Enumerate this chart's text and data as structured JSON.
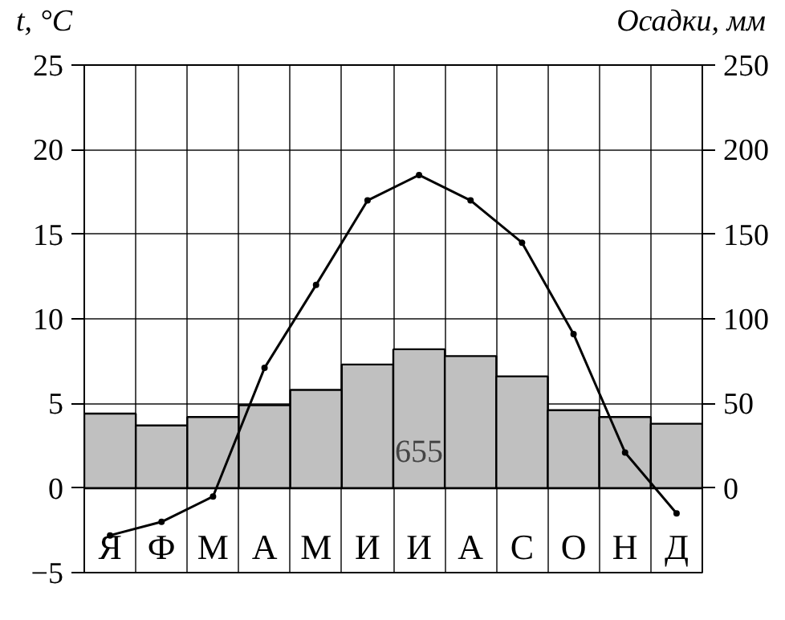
{
  "chart_data": {
    "type": "bar",
    "xlabel": null,
    "ylabel": "t, °C",
    "y2label": "Осадки, мм",
    "categories": [
      "Я",
      "Ф",
      "М",
      "А",
      "М",
      "И",
      "И",
      "А",
      "С",
      "О",
      "Н",
      "Д"
    ],
    "series": [
      {
        "axis": "y2",
        "color": "#c0c0c0",
        "values": [
          44,
          37,
          42,
          49,
          58,
          73,
          82,
          78,
          66,
          46,
          42,
          38
        ]
      },
      {
        "type": "line",
        "axis": "y",
        "color": "#000000",
        "marker": "circle",
        "values": [
          -2.8,
          -2.0,
          -0.5,
          7.1,
          12.0,
          17.0,
          18.5,
          17.0,
          14.5,
          9.1,
          2.1,
          -1.5
        ]
      }
    ],
    "annotations": [
      "655"
    ],
    "ylim": [
      -5,
      25
    ],
    "yticks": [
      -5,
      0,
      5,
      10,
      15,
      20,
      25
    ],
    "y2lim": [
      -50,
      250
    ],
    "y2ticks": [
      0,
      50,
      100,
      150,
      200,
      250
    ],
    "grid": true
  }
}
